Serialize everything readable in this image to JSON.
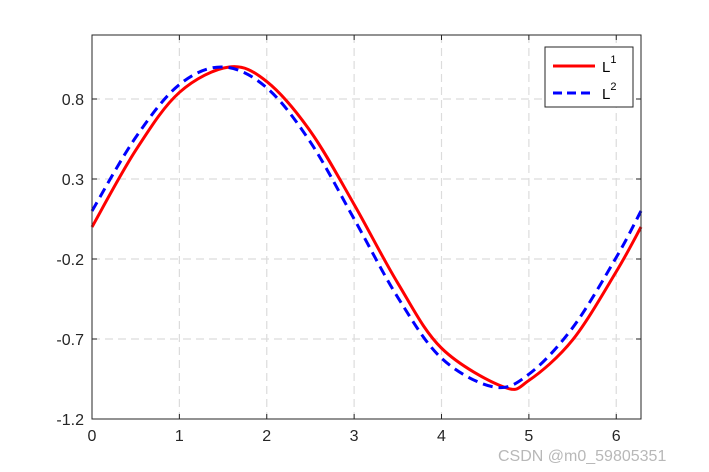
{
  "chart_data": {
    "type": "line",
    "title": "",
    "xlabel": "",
    "ylabel": "",
    "xlim": [
      0,
      6.2832
    ],
    "ylim": [
      -1.2,
      1.2
    ],
    "x_ticks": [
      0,
      1,
      2,
      3,
      4,
      5,
      6
    ],
    "x_tick_labels": [
      "0",
      "1",
      "2",
      "3",
      "4",
      "5",
      "6"
    ],
    "y_ticks": [
      -1.2,
      -0.7,
      -0.2,
      0.3,
      0.8
    ],
    "y_tick_labels": [
      "-1.2",
      "-0.7",
      "-0.2",
      "0.3",
      "0.8"
    ],
    "grid": true,
    "legend_position": "top-right",
    "series": [
      {
        "name": "L",
        "superscript": "1",
        "color": "#ff0000",
        "line_style": "solid",
        "x": [
          0,
          0.5,
          1.0,
          1.5708,
          2.0,
          2.5,
          3.0,
          3.5,
          4.0,
          4.7124,
          5.0,
          5.5,
          6.0,
          6.2832
        ],
        "y": [
          0,
          0.479,
          0.841,
          1.0,
          0.909,
          0.598,
          0.141,
          -0.351,
          -0.757,
          -1.0,
          -0.959,
          -0.706,
          -0.279,
          0
        ]
      },
      {
        "name": "L",
        "superscript": "2",
        "color": "#0000ff",
        "line_style": "dashed",
        "x": [
          0,
          0.5,
          1.0,
          1.5,
          2.0,
          2.5,
          3.0,
          3.5,
          4.0,
          4.6,
          5.0,
          5.5,
          6.0,
          6.2832
        ],
        "y": [
          0.1,
          0.56,
          0.89,
          1.0,
          0.87,
          0.53,
          0.05,
          -0.44,
          -0.82,
          -1.0,
          -0.92,
          -0.63,
          -0.19,
          0.1
        ]
      }
    ]
  },
  "watermark": "CSDN @m0_59805351"
}
